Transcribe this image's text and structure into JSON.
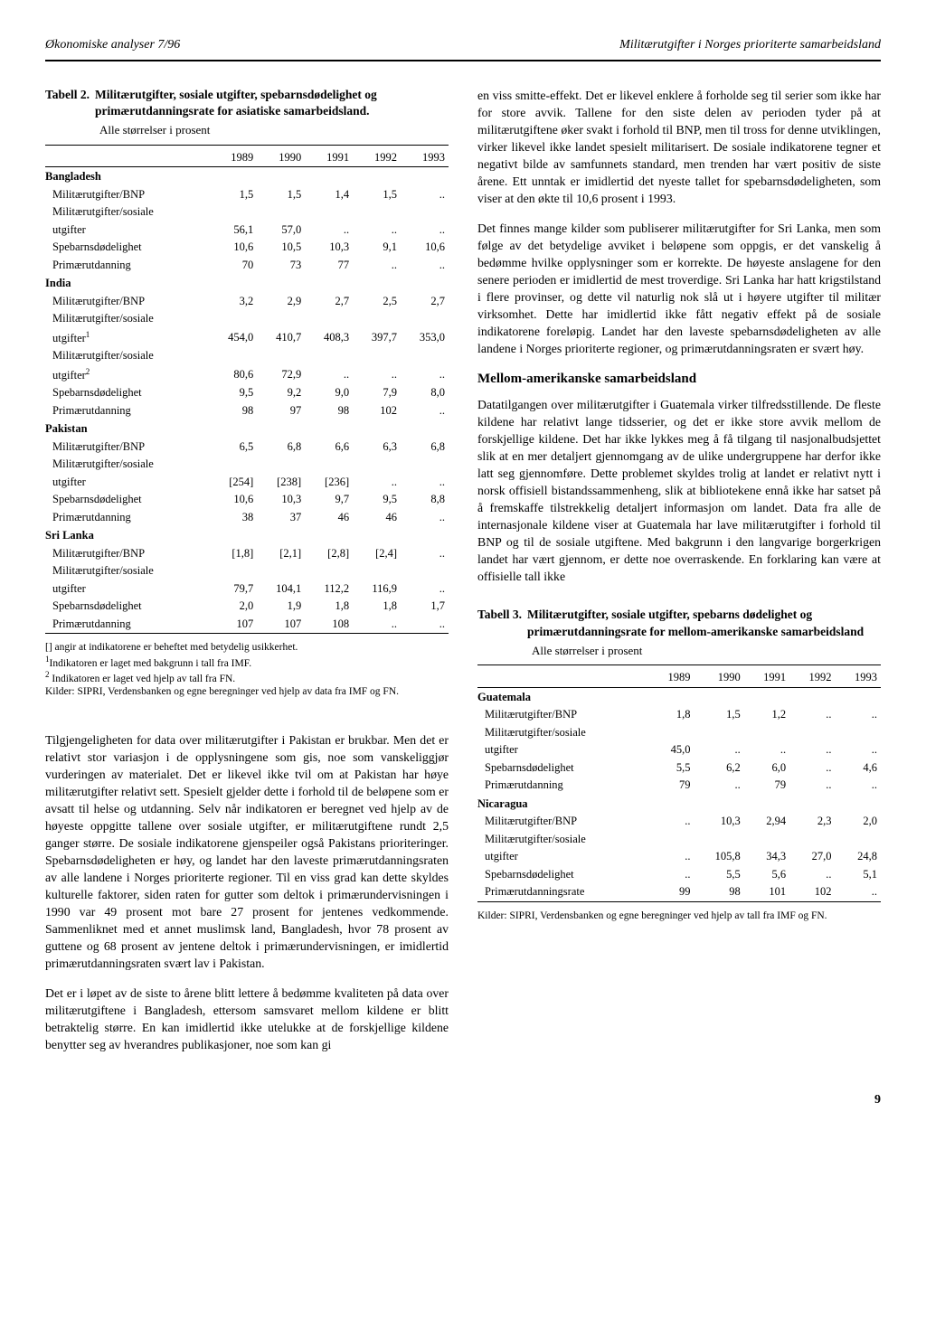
{
  "header": {
    "left": "Økonomiske analyser 7/96",
    "right": "Militærutgifter i Norges prioriterte samarbeidsland"
  },
  "table2": {
    "label": "Tabell 2.",
    "title": "Militærutgifter, sosiale utgifter, spebarnsdødelighet og primærutdanningsrate for asiatiske samarbeidsland.",
    "subtitle": "Alle størrelser i prosent",
    "years": [
      "1989",
      "1990",
      "1991",
      "1992",
      "1993"
    ],
    "groups": [
      {
        "country": "Bangladesh",
        "rows": [
          {
            "label": "Militærutgifter/BNP",
            "v": [
              "1,5",
              "1,5",
              "1,4",
              "1,5",
              ".."
            ]
          },
          {
            "label": "Militærutgifter/sosiale",
            "v": [
              "",
              "",
              "",
              "",
              ""
            ]
          },
          {
            "label": "utgifter",
            "v": [
              "56,1",
              "57,0",
              "..",
              "..",
              ".."
            ]
          },
          {
            "label": "Spebarnsdødelighet",
            "v": [
              "10,6",
              "10,5",
              "10,3",
              "9,1",
              "10,6"
            ]
          },
          {
            "label": "Primærutdanning",
            "v": [
              "70",
              "73",
              "77",
              "..",
              ".."
            ]
          }
        ]
      },
      {
        "country": "India",
        "rows": [
          {
            "label": "Militærutgifter/BNP",
            "v": [
              "3,2",
              "2,9",
              "2,7",
              "2,5",
              "2,7"
            ]
          },
          {
            "label": "Militærutgifter/sosiale",
            "v": [
              "",
              "",
              "",
              "",
              ""
            ]
          },
          {
            "label": "utgifter¹",
            "v": [
              "454,0",
              "410,7",
              "408,3",
              "397,7",
              "353,0"
            ]
          },
          {
            "label": "Militærutgifter/sosiale",
            "v": [
              "",
              "",
              "",
              "",
              ""
            ]
          },
          {
            "label": "utgifter²",
            "v": [
              "80,6",
              "72,9",
              "..",
              "..",
              ".."
            ]
          },
          {
            "label": "Spebarnsdødelighet",
            "v": [
              "9,5",
              "9,2",
              "9,0",
              "7,9",
              "8,0"
            ]
          },
          {
            "label": "Primærutdanning",
            "v": [
              "98",
              "97",
              "98",
              "102",
              ".."
            ]
          }
        ]
      },
      {
        "country": "Pakistan",
        "rows": [
          {
            "label": "Militærutgifter/BNP",
            "v": [
              "6,5",
              "6,8",
              "6,6",
              "6,3",
              "6,8"
            ]
          },
          {
            "label": "Militærutgifter/sosiale",
            "v": [
              "",
              "",
              "",
              "",
              ""
            ]
          },
          {
            "label": "utgifter",
            "v": [
              "[254]",
              "[238]",
              "[236]",
              "..",
              ".."
            ]
          },
          {
            "label": "Spebarnsdødelighet",
            "v": [
              "10,6",
              "10,3",
              "9,7",
              "9,5",
              "8,8"
            ]
          },
          {
            "label": "Primærutdanning",
            "v": [
              "38",
              "37",
              "46",
              "46",
              ".."
            ]
          }
        ]
      },
      {
        "country": "Sri Lanka",
        "rows": [
          {
            "label": "Militærutgifter/BNP",
            "v": [
              "[1,8]",
              "[2,1]",
              "[2,8]",
              "[2,4]",
              ".."
            ]
          },
          {
            "label": "Militærutgifter/sosiale",
            "v": [
              "",
              "",
              "",
              "",
              ""
            ]
          },
          {
            "label": "utgifter",
            "v": [
              "79,7",
              "104,1",
              "112,2",
              "116,9",
              ".."
            ]
          },
          {
            "label": "Spebarnsdødelighet",
            "v": [
              "2,0",
              "1,9",
              "1,8",
              "1,8",
              "1,7"
            ]
          },
          {
            "label": "Primærutdanning",
            "v": [
              "107",
              "107",
              "108",
              "..",
              ".."
            ]
          }
        ]
      }
    ],
    "footnotes": [
      "[] angir at indikatorene er beheftet med betydelig usikkerhet.",
      "¹Indikatoren er laget med bakgrunn i tall fra IMF.",
      "² Indikatoren er laget ved hjelp av tall fra FN.",
      "Kilder: SIPRI, Verdensbanken og egne beregninger ved hjelp av data fra IMF og FN."
    ]
  },
  "left_paras": [
    "Tilgjengeligheten for data over militærutgifter i Pakistan er brukbar. Men det er relativt stor variasjon i de opplysningene som gis, noe som vanskeliggjør vurderingen av materialet. Det er likevel ikke tvil om at Pakistan har høye militærutgifter relativt sett. Spesielt gjelder dette i forhold til de beløpene som er avsatt til helse og utdanning. Selv når indikatoren er beregnet ved hjelp av de høyeste oppgitte tallene over sosiale utgifter, er militærutgiftene rundt 2,5 ganger større. De sosiale indikatorene gjenspeiler også Pakistans prioriteringer. Spebarnsdødeligheten er høy, og landet har den laveste primærutdanningsraten av alle landene i Norges prioriterte regioner. Til en viss grad kan dette skyldes kulturelle faktorer, siden raten for gutter som deltok i primærundervisningen i 1990 var 49 prosent mot bare 27 prosent for jentenes vedkommende. Sammenliknet med et annet muslimsk land, Bangladesh, hvor 78 prosent av guttene og 68 prosent av jentene deltok i primærundervisningen, er imidlertid primærutdanningsraten svært lav i Pakistan.",
    "Det er i løpet av de siste to årene blitt lettere å bedømme kvaliteten på data over militærutgiftene i Bangladesh, ettersom samsvaret mellom kildene er blitt betraktelig større. En kan imidlertid ikke utelukke at de forskjellige kildene benytter seg av hverandres publikasjoner, noe som kan gi"
  ],
  "right_paras": [
    "en viss smitte-effekt. Det er likevel enklere å forholde seg til serier som ikke har for store avvik. Tallene for den siste delen av perioden tyder på at militærutgiftene øker svakt i forhold til BNP, men til tross for denne utviklingen, virker likevel ikke landet spesielt militarisert. De sosiale indikatorene tegner et negativt bilde av samfunnets standard, men trenden har vært positiv de siste årene. Ett unntak er imidlertid det nyeste tallet for spebarnsdødeligheten, som viser at den økte til 10,6 prosent i 1993.",
    "Det finnes mange kilder som publiserer militærutgifter for Sri Lanka, men som følge av det betydelige avviket i beløpene som oppgis, er det vanskelig å bedømme hvilke opplysninger som er korrekte. De høyeste anslagene for den senere perioden er imidlertid de mest troverdige. Sri Lanka har hatt krigstilstand i flere provinser, og dette vil naturlig nok slå ut i høyere utgifter til militær virksomhet. Dette har imidlertid ikke fått negativ effekt på de sosiale indikatorene foreløpig. Landet har den laveste spebarnsdødeligheten av alle landene i Norges prioriterte regioner, og primærutdanningsraten er svært høy."
  ],
  "section_heading": "Mellom-amerikanske samarbeidsland",
  "right_paras2": [
    "Datatilgangen over militærutgifter i Guatemala virker tilfredsstillende. De fleste kildene har relativt lange tidsserier, og det er ikke store avvik mellom de forskjellige kildene. Det har ikke lykkes meg å få tilgang til nasjonalbudsjettet slik at en mer detaljert gjennomgang av de ulike undergruppene har derfor ikke latt seg gjennomføre. Dette problemet skyldes trolig at landet er relativt nytt i norsk offisiell bistandssammenheng, slik at bibliotekene ennå ikke har satset på å fremskaffe tilstrekkelig detaljert informasjon om landet. Data fra alle de internasjonale kildene viser at Guatemala har lave militærutgifter i forhold til BNP og til de sosiale utgiftene. Med bakgrunn i den langvarige borgerkrigen landet har vært gjennom, er dette noe overraskende. En forklaring kan være at offisielle tall ikke"
  ],
  "table3": {
    "label": "Tabell 3.",
    "title": "Militærutgifter, sosiale utgifter, spebarns dødelighet og primærutdanningsrate for mellom-amerikanske samarbeidsland",
    "subtitle": "Alle størrelser i prosent",
    "years": [
      "1989",
      "1990",
      "1991",
      "1992",
      "1993"
    ],
    "groups": [
      {
        "country": "Guatemala",
        "rows": [
          {
            "label": "Militærutgifter/BNP",
            "v": [
              "1,8",
              "1,5",
              "1,2",
              "..",
              ".."
            ]
          },
          {
            "label": "Militærutgifter/sosiale",
            "v": [
              "",
              "",
              "",
              "",
              ""
            ]
          },
          {
            "label": "utgifter",
            "v": [
              "45,0",
              "..",
              "..",
              "..",
              ".."
            ]
          },
          {
            "label": "Spebarnsdødelighet",
            "v": [
              "5,5",
              "6,2",
              "6,0",
              "..",
              "4,6"
            ]
          },
          {
            "label": "Primærutdanning",
            "v": [
              "79",
              "..",
              "79",
              "..",
              ".."
            ]
          }
        ]
      },
      {
        "country": "Nicaragua",
        "rows": [
          {
            "label": "Militærutgifter/BNP",
            "v": [
              "..",
              "10,3",
              "2,94",
              "2,3",
              "2,0"
            ]
          },
          {
            "label": "Militærutgifter/sosiale",
            "v": [
              "",
              "",
              "",
              "",
              ""
            ]
          },
          {
            "label": "utgifter",
            "v": [
              "..",
              "105,8",
              "34,3",
              "27,0",
              "24,8"
            ]
          },
          {
            "label": "Spebarnsdødelighet",
            "v": [
              "..",
              "5,5",
              "5,6",
              "..",
              "5,1"
            ]
          },
          {
            "label": "Primærutdanningsrate",
            "v": [
              "99",
              "98",
              "101",
              "102",
              ".."
            ]
          }
        ]
      }
    ],
    "footnotes": [
      "Kilder: SIPRI, Verdensbanken og egne beregninger ved hjelp av tall fra IMF og FN."
    ]
  },
  "pagenum": "9"
}
